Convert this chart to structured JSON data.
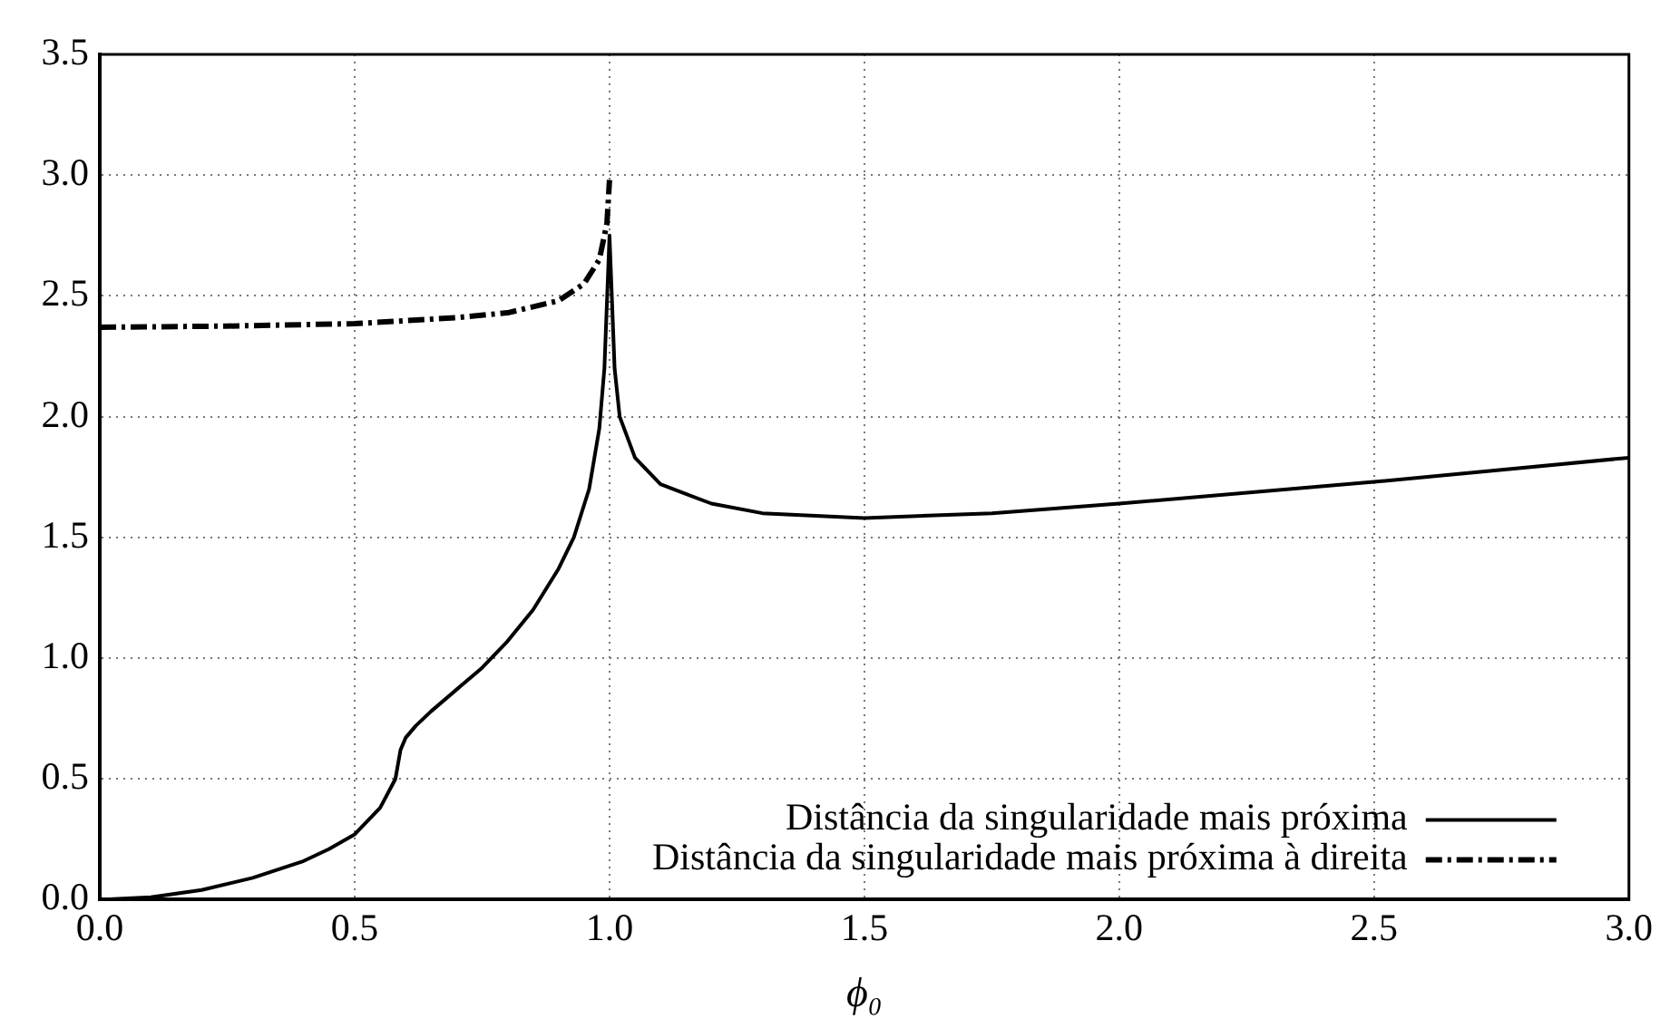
{
  "chart_data": {
    "type": "line",
    "xlabel": "ϕ₀",
    "xlim": [
      0,
      3
    ],
    "ylim": [
      0,
      3.5
    ],
    "xticks": [
      {
        "value": 0,
        "label": "0.0"
      },
      {
        "value": 0.5,
        "label": "0.5"
      },
      {
        "value": 1,
        "label": "1.0"
      },
      {
        "value": 1.5,
        "label": "1.5"
      },
      {
        "value": 2,
        "label": "2.0"
      },
      {
        "value": 2.5,
        "label": "2.5"
      },
      {
        "value": 3,
        "label": "3.0"
      }
    ],
    "yticks": [
      {
        "value": 0,
        "label": "0.0"
      },
      {
        "value": 0.5,
        "label": "0.5"
      },
      {
        "value": 1,
        "label": "1.0"
      },
      {
        "value": 1.5,
        "label": "1.5"
      },
      {
        "value": 2,
        "label": "2.0"
      },
      {
        "value": 2.5,
        "label": "2.5"
      },
      {
        "value": 3,
        "label": "3.0"
      },
      {
        "value": 3.5,
        "label": "3.5"
      }
    ],
    "grid": true,
    "legend": "bottom right",
    "marker": "none",
    "series": [
      {
        "name": "Distância da singularidade mais próxima",
        "color": "#000000",
        "line_style": "solid",
        "x": [
          0,
          0.1,
          0.2,
          0.3,
          0.4,
          0.45,
          0.5,
          0.55,
          0.58,
          0.59,
          0.6,
          0.62,
          0.65,
          0.7,
          0.75,
          0.8,
          0.85,
          0.9,
          0.93,
          0.96,
          0.98,
          0.99,
          1.0,
          1.01,
          1.02,
          1.05,
          1.1,
          1.2,
          1.3,
          1.5,
          1.75,
          2.0,
          2.5,
          3.0
        ],
        "values": [
          0,
          0.01,
          0.04,
          0.09,
          0.16,
          0.21,
          0.27,
          0.38,
          0.5,
          0.62,
          0.67,
          0.72,
          0.78,
          0.87,
          0.96,
          1.07,
          1.2,
          1.37,
          1.5,
          1.7,
          1.95,
          2.2,
          2.75,
          2.2,
          2.0,
          1.83,
          1.72,
          1.64,
          1.6,
          1.58,
          1.6,
          1.64,
          1.73,
          1.83
        ]
      },
      {
        "name": "Distância da singularidade mais próxima à direita",
        "color": "#000000",
        "line_style": "dashdot",
        "x": [
          0,
          0.25,
          0.5,
          0.7,
          0.8,
          0.9,
          0.95,
          0.98,
          0.995,
          1.0
        ],
        "values": [
          2.37,
          2.375,
          2.385,
          2.41,
          2.43,
          2.48,
          2.55,
          2.65,
          2.8,
          2.98
        ]
      }
    ]
  }
}
